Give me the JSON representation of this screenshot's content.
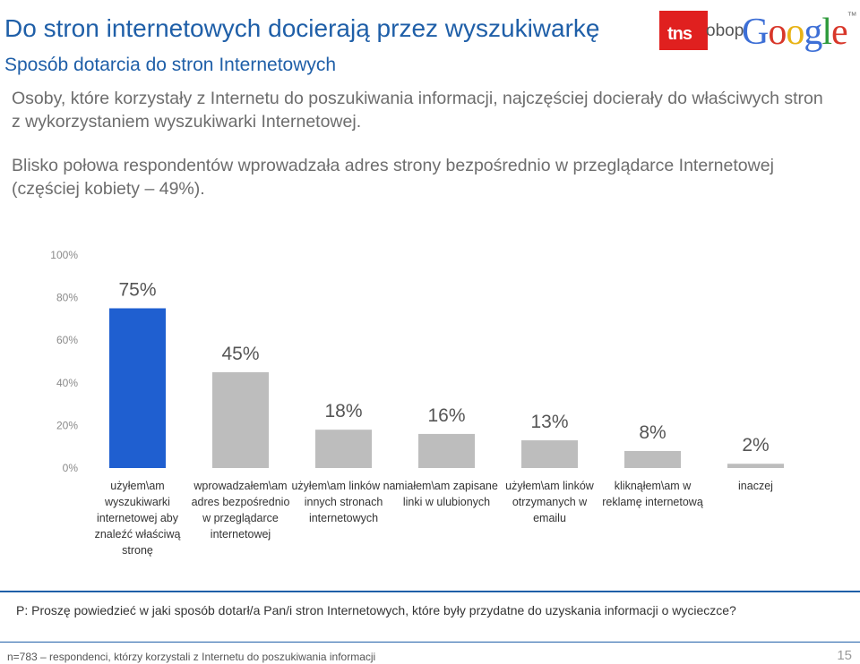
{
  "header": {
    "title": "Do stron internetowych docierają przez wyszukiwarkę",
    "subtitle": "Sposób dotarcia do stron Internetowych"
  },
  "logos": {
    "tns": "tns",
    "obop": "obop",
    "google_letters": [
      "G",
      "o",
      "o",
      "g",
      "l",
      "e"
    ],
    "google_tm": "™"
  },
  "text": {
    "paragraph_1": "Osoby, które korzystały z Internetu do poszukiwania informacji, najczęściej docierały do właściwych stron z wykorzystaniem wyszukiwarki Internetowej.",
    "paragraph_2": "Blisko połowa respondentów wprowadzała adres strony bezpośrednio w przeglądarce Internetowej (częściej kobiety – 49%)."
  },
  "chart_data": {
    "type": "bar",
    "categories": [
      "użyłem\\am wyszukiwarki internetowej aby znaleźć właściwą stronę",
      "wprowadzałem\\am adres bezpośrednio w przeglądarce internetowej",
      "użyłem\\am linków na innych stronach internetowych",
      "miałem\\am zapisane linki w ulubionych",
      "użyłem\\am linków otrzymanych w emailu",
      "kliknąłem\\am w reklamę internetową",
      "inaczej"
    ],
    "values": [
      75,
      45,
      18,
      16,
      13,
      8,
      2
    ],
    "value_labels": [
      "75%",
      "45%",
      "18%",
      "16%",
      "13%",
      "8%",
      "2%"
    ],
    "ylim": [
      0,
      100
    ],
    "yticks": [
      0,
      20,
      40,
      60,
      80,
      100
    ],
    "ytick_labels": [
      "0%",
      "20%",
      "40%",
      "60%",
      "80%",
      "100%"
    ],
    "grid": false,
    "colors": {
      "highlight": "#1f5fd0",
      "default": "#bdbdbd"
    },
    "highlight_index": 0
  },
  "footer": {
    "question": "P: Proszę powiedzieć w jaki sposób dotarł/a Pan/i stron Internetowych, które były przydatne do uzyskania informacji o wycieczce?",
    "footnote": "n=783 – respondenci, którzy korzystali z Internetu do poszukiwania informacji",
    "page_number": "15"
  }
}
